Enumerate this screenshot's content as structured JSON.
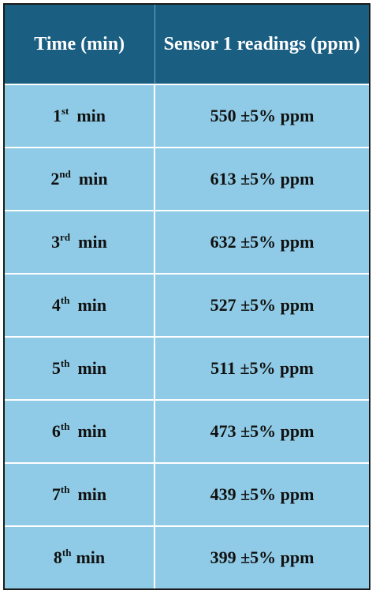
{
  "table": {
    "headers": [
      "Time (min)",
      "Sensor 1 readings (ppm)"
    ],
    "rows": [
      {
        "num": "1",
        "suffix": "st",
        "unit": "min",
        "reading": "550 ±5% ppm"
      },
      {
        "num": "2",
        "suffix": "nd",
        "unit": "min",
        "reading": "613 ±5% ppm"
      },
      {
        "num": "3",
        "suffix": "rd",
        "unit": "min",
        "reading": "632 ±5% ppm"
      },
      {
        "num": "4",
        "suffix": "th",
        "unit": "min",
        "reading": "527 ±5% ppm"
      },
      {
        "num": "5",
        "suffix": "th",
        "unit": "min",
        "reading": "511 ±5% ppm"
      },
      {
        "num": "6",
        "suffix": "th",
        "unit": "min",
        "reading": "473 ±5% ppm"
      },
      {
        "num": "7",
        "suffix": "th",
        "unit": "min",
        "reading": "439 ±5% ppm"
      },
      {
        "num": "8",
        "suffix": "th",
        "unit": "min",
        "reading": "399 ±5% ppm"
      }
    ]
  },
  "colors": {
    "header_bg": "#1a5e82",
    "cell_bg": "#8fcbe6",
    "grid_lines": "#ffffff"
  }
}
